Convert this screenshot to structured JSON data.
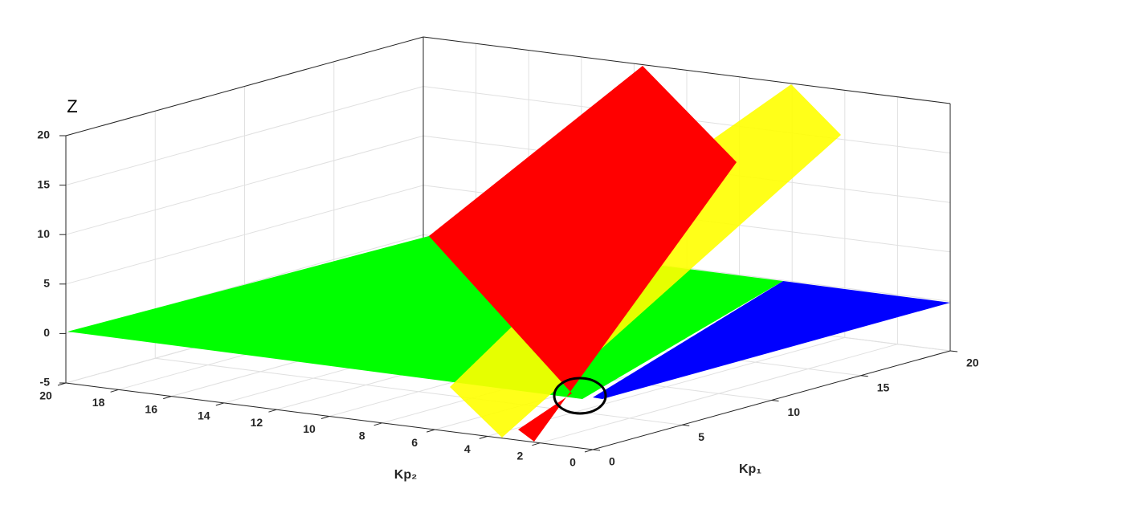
{
  "chart_data": {
    "type": "surface3d",
    "zlabel": "Z",
    "xlabel": "Kp₁",
    "ylabel": "Kp₂",
    "xlim": [
      0,
      20
    ],
    "xticks": [
      0,
      5,
      10,
      15,
      20
    ],
    "ylim": [
      0,
      20
    ],
    "yticks": [
      0,
      2,
      4,
      6,
      8,
      10,
      12,
      14,
      16,
      18,
      20
    ],
    "zlim": [
      -5,
      20
    ],
    "zticks": [
      -5,
      0,
      5,
      10,
      15,
      20
    ],
    "grid": true,
    "surface_colors": [
      "#0000ff",
      "#00ff00",
      "#ffff00",
      "#ff0000"
    ]
  }
}
